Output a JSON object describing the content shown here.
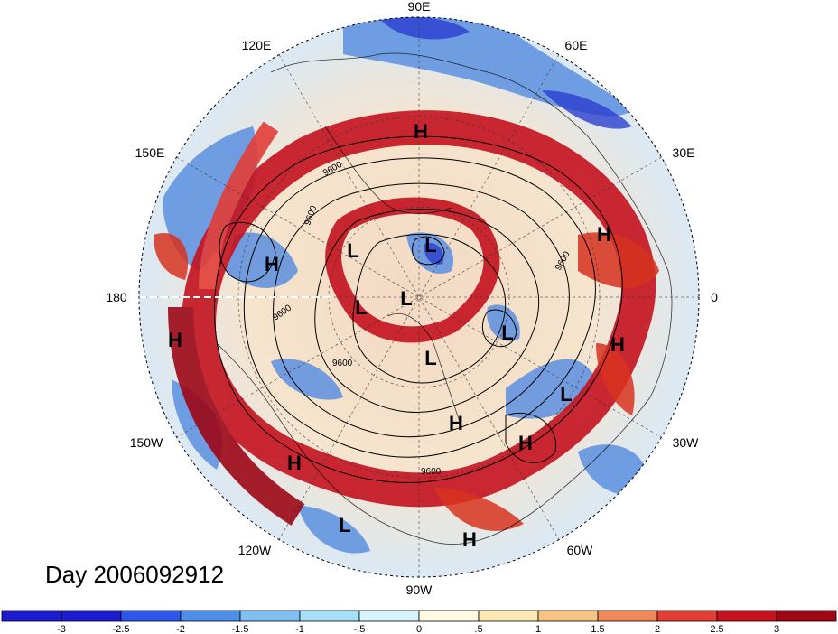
{
  "map": {
    "longitude_labels": [
      "90E",
      "60E",
      "30E",
      "0",
      "30W",
      "60W",
      "90W",
      "120W",
      "150W",
      "180",
      "150E",
      "120E"
    ],
    "contour_labels": [
      "9600",
      "9600",
      "9600",
      "9600",
      "9600",
      "9600"
    ],
    "pressure_centers": [
      "H",
      "H",
      "H",
      "H",
      "H",
      "H",
      "H",
      "H",
      "H",
      "L",
      "L",
      "L",
      "L",
      "L",
      "L",
      "L",
      "L"
    ],
    "day_label": "Day 2006092912"
  },
  "colorbar": {
    "tick_labels": [
      "-3",
      "-2.5",
      "-2",
      "-1.5",
      "-1",
      "-.5",
      "0",
      ".5",
      "1",
      "1.5",
      "2",
      "2.5",
      "3"
    ],
    "colors": [
      "#1c1ccc",
      "#2e56e8",
      "#4f8fe8",
      "#7fbff2",
      "#a6e0f7",
      "#d7f3fb",
      "#fefbe2",
      "#fde9b3",
      "#f7c483",
      "#f0895a",
      "#e33e36",
      "#c4121f",
      "#9d0716"
    ]
  }
}
